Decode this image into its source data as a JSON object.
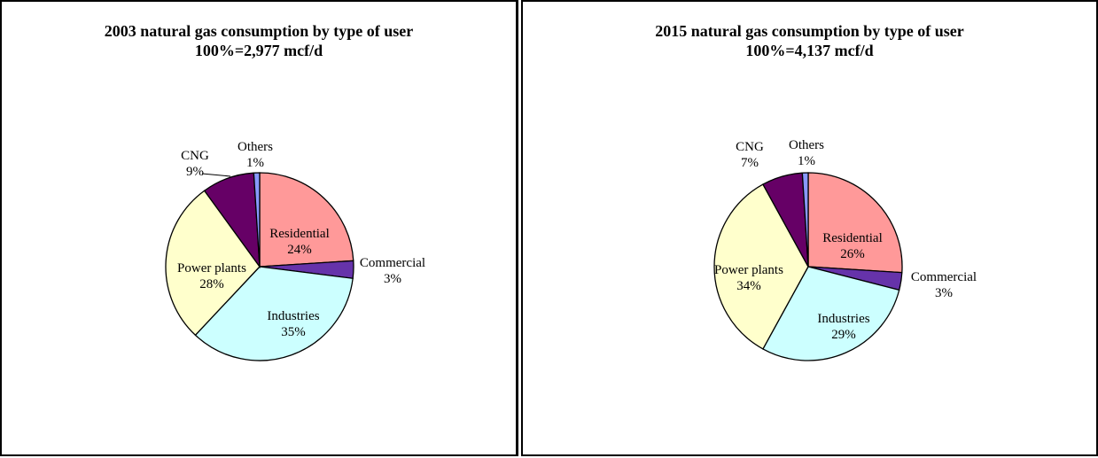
{
  "chart_data": [
    {
      "type": "pie",
      "title": "2003 natural gas consumption by type of user",
      "subtitle": "100%=2,977 mcf/d",
      "categories": [
        "Residential",
        "Commercial",
        "Industries",
        "Power plants",
        "CNG",
        "Others"
      ],
      "values": [
        24,
        3,
        35,
        28,
        9,
        1
      ],
      "labels": [
        "24%",
        "3%",
        "35%",
        "28%",
        "9%",
        "1%"
      ],
      "colors": [
        "#ff9999",
        "#6633aa",
        "#ccffff",
        "#ffffcc",
        "#660066",
        "#8899ff"
      ],
      "start_angle_deg": 0,
      "direction": "clockwise"
    },
    {
      "type": "pie",
      "title": "2015 natural gas consumption by type of user",
      "subtitle": "100%=4,137 mcf/d",
      "categories": [
        "Residential",
        "Commercial",
        "Industries",
        "Power plants",
        "CNG",
        "Others"
      ],
      "values": [
        26,
        3,
        29,
        34,
        7,
        1
      ],
      "labels": [
        "26%",
        "3%",
        "29%",
        "34%",
        "7%",
        "1%"
      ],
      "colors": [
        "#ff9999",
        "#6633aa",
        "#ccffff",
        "#ffffcc",
        "#660066",
        "#8899ff"
      ],
      "start_angle_deg": 0,
      "direction": "clockwise"
    }
  ]
}
